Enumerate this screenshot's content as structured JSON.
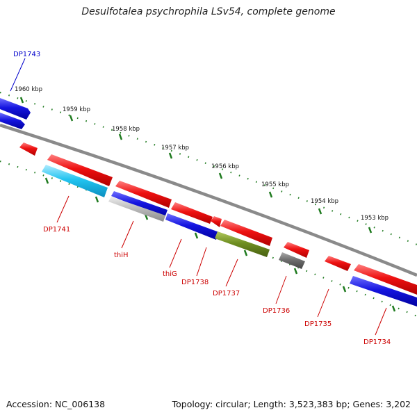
{
  "title": "Desulfotalea psychrophila LSv54, complete genome",
  "footer": {
    "accession": "Accession: NC_006138",
    "summary": "Topology: circular; Length: 3,523,383 bp; Genes: 3,202"
  },
  "colors": {
    "backbone": "#8a8a8a",
    "tick": "#1e7a1e",
    "forward_label": "#0000cc",
    "reverse_label": "#cc0000",
    "red": "#ee1111",
    "blue": "#1515e0",
    "cyan": "#22c4f0",
    "gray": "#bdbdbd",
    "dark_gray": "#6f6f6f",
    "olive": "#6f8f22"
  },
  "scale_labels": [
    "1960 kbp",
    "1959 kbp",
    "1958 kbp",
    "1957 kbp",
    "1956 kbp",
    "1955 kbp",
    "1954 kbp",
    "1953 kbp"
  ],
  "gene_labels": [
    "DP1743",
    "DP1741",
    "thiH",
    "thiG",
    "DP1738",
    "DP1737",
    "DP1736",
    "DP1735",
    "DP1734"
  ]
}
